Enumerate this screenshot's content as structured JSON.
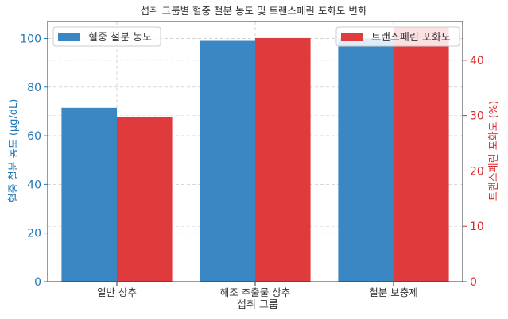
{
  "chart_data": {
    "type": "bar",
    "title": "섭취 그룹별 혈중 철분 농도 및 트랜스페린 포화도 변화",
    "xlabel": "섭취 그룹",
    "categories": [
      "일반 상추",
      "해조 추출물 상추",
      "철분 보충제"
    ],
    "y_left": {
      "label": "혈중 철분 농도 (μg/dL)",
      "lim": [
        0,
        107
      ],
      "ticks": [
        0,
        20,
        40,
        60,
        80,
        100
      ],
      "color": "#1f77b4"
    },
    "y_right": {
      "label": "트랜스페린 포화도 (%)",
      "lim": [
        0,
        47
      ],
      "ticks": [
        0,
        10,
        20,
        30,
        40
      ],
      "color": "#d62728"
    },
    "series": [
      {
        "name": "혈중 철분 농도",
        "axis": "left",
        "values": [
          71.5,
          99,
          100
        ],
        "color": "#3b87c3"
      },
      {
        "name": "트랜스페린 포화도",
        "axis": "right",
        "values": [
          29.8,
          44,
          46
        ],
        "color": "#e03b3c"
      }
    ],
    "grid": true,
    "legend": [
      "top-left",
      "top-right"
    ]
  }
}
